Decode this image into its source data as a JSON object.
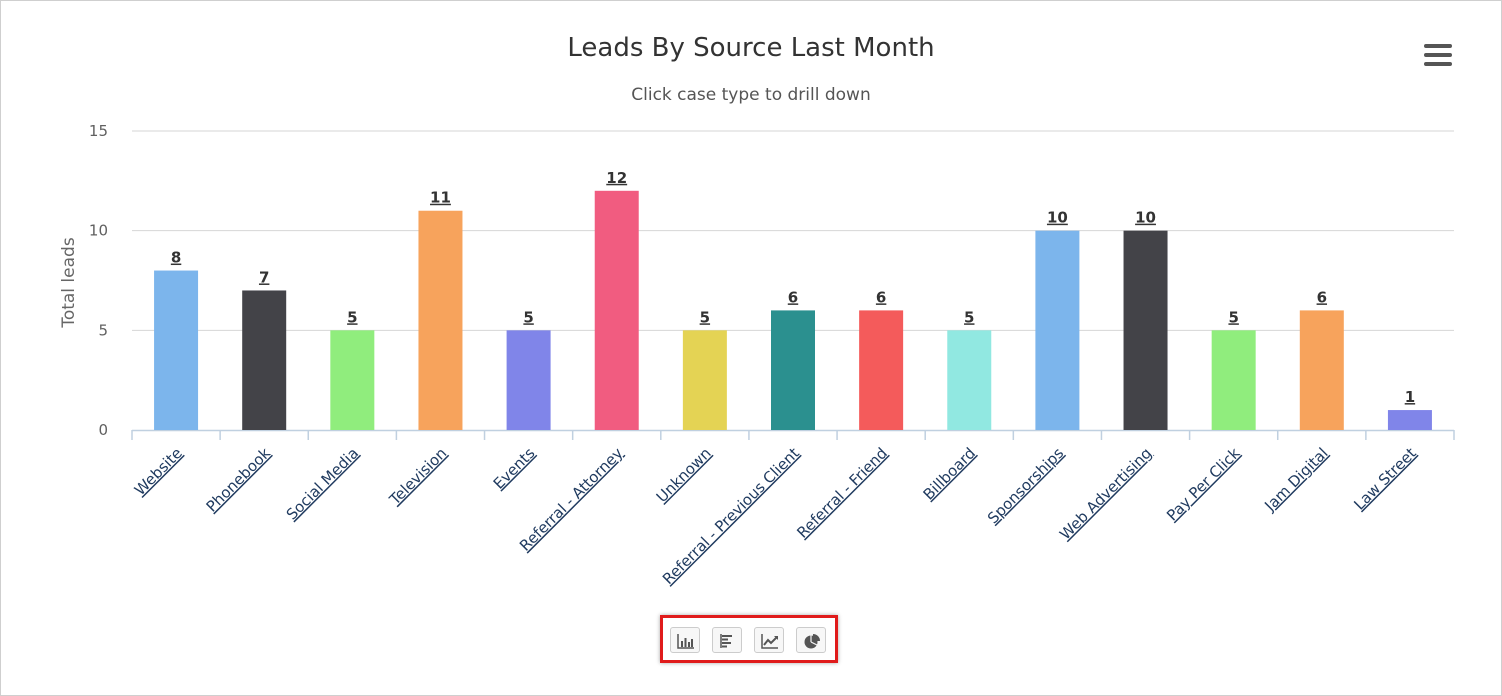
{
  "chart_data": {
    "type": "bar",
    "title": "Leads By Source Last Month",
    "subtitle": "Click case type to drill down",
    "ylabel": "Total leads",
    "xlabel": "",
    "ylim": [
      0,
      15
    ],
    "yticks": [
      0,
      5,
      10,
      15
    ],
    "grid": true,
    "legend": "none",
    "categories": [
      "Website",
      "Phonebook",
      "Social Media",
      "Television",
      "Events",
      "Referral - Attorney",
      "Unknown",
      "Referral - Previous Client",
      "Referral - Friend",
      "Billboard",
      "Sponsorships",
      "Web Advertising",
      "Pay Per Click",
      "Jam Digital",
      "Law Street"
    ],
    "values": [
      8,
      7,
      5,
      11,
      5,
      12,
      5,
      6,
      6,
      5,
      10,
      10,
      5,
      6,
      1
    ],
    "colors": [
      "#7cb5ec",
      "#434348",
      "#90ed7d",
      "#f7a35c",
      "#8085e9",
      "#f15c80",
      "#e4d354",
      "#2b908f",
      "#f45b5b",
      "#91e8e1",
      "#7cb5ec",
      "#434348",
      "#90ed7d",
      "#f7a35c",
      "#8085e9"
    ]
  },
  "toolbar": {
    "menu_icon": "hamburger-menu-icon",
    "chart_type_icons": [
      "column-chart-icon",
      "bar-chart-icon",
      "line-chart-icon",
      "pie-chart-icon"
    ],
    "highlight_color": "#e01b1b"
  }
}
